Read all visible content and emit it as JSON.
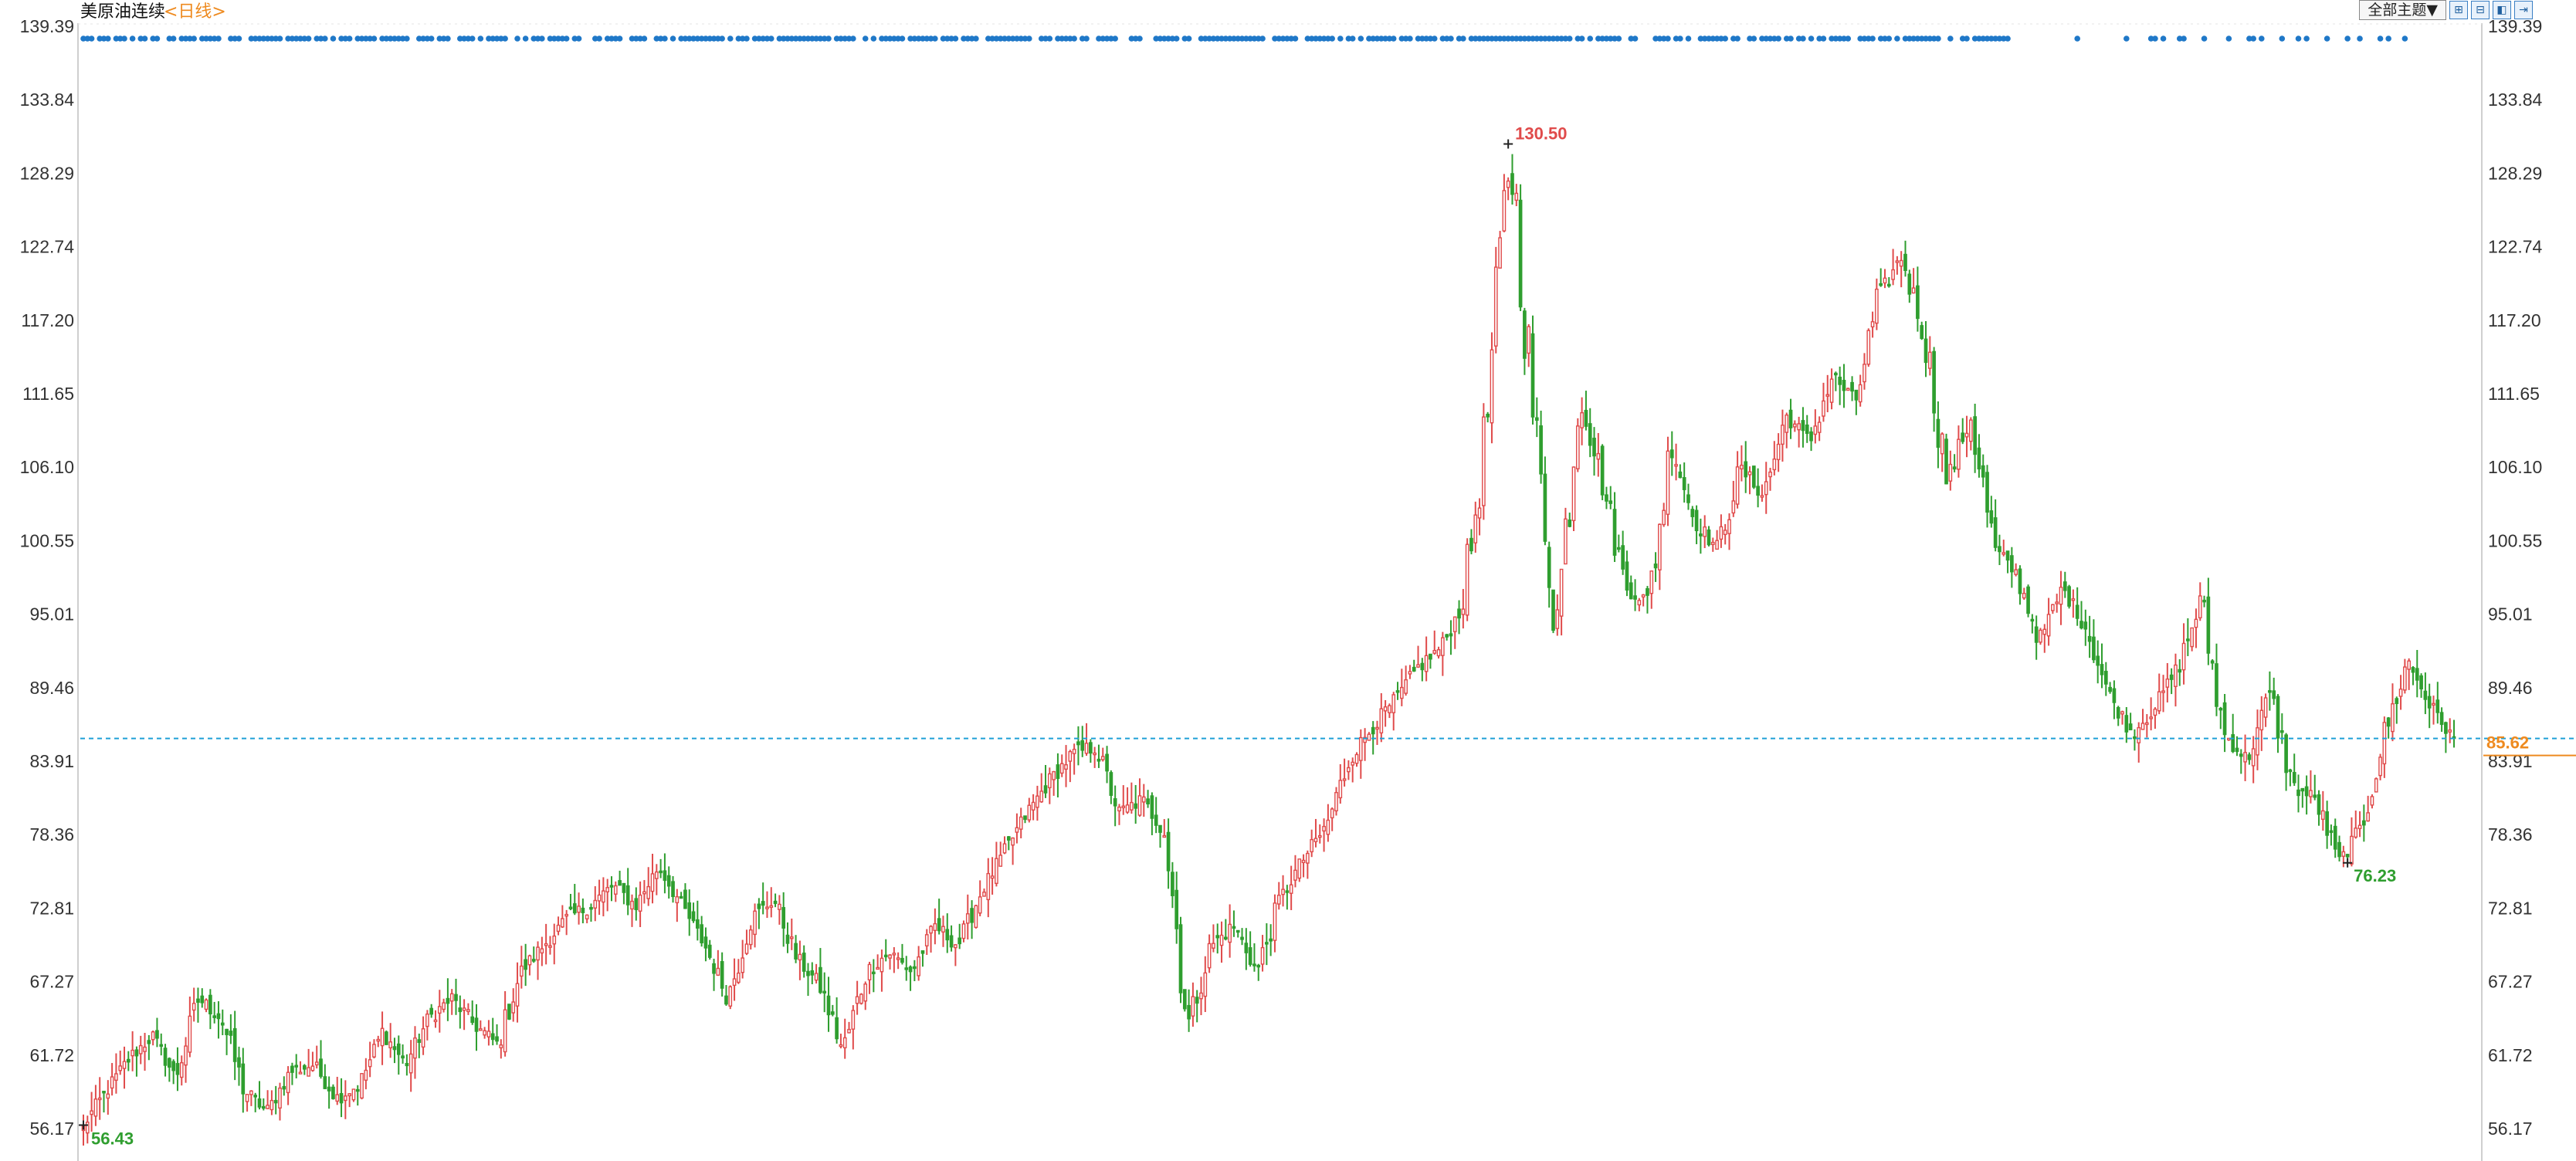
{
  "title": {
    "name": "美原油连续",
    "period": "<日线>"
  },
  "toolbar": {
    "theme_label": "全部主题▼",
    "tools": [
      "⊞",
      "⊟",
      "◧",
      "⇥"
    ]
  },
  "colors": {
    "up": "#e04b4b",
    "down": "#2f9e2f",
    "dots": "#1f78c8",
    "ref_line": "#1ea0d6",
    "price_tag": "#ee8a1f"
  },
  "chart_data": {
    "type": "candlestick",
    "title": "美原油连续",
    "ylim": [
      56.17,
      139.39
    ],
    "y_ticks": [
      "139.39",
      "133.84",
      "128.29",
      "122.74",
      "117.20",
      "111.65",
      "106.10",
      "100.55",
      "95.01",
      "89.46",
      "83.91",
      "78.36",
      "72.81",
      "67.27",
      "61.72",
      "56.17"
    ],
    "grid": false,
    "last_price": "85.62",
    "last_price_value": 85.62,
    "max_label": {
      "text": "130.50",
      "value": 130.5
    },
    "min_label": {
      "text": "56.43",
      "value": 56.43
    },
    "local_low_label": {
      "text": "76.23",
      "value": 76.23
    },
    "trend_closes": [
      56.43,
      59.0,
      61.5,
      63.2,
      60.0,
      66.0,
      64.5,
      59.0,
      57.5,
      60.5,
      61.0,
      58.5,
      59.5,
      63.5,
      61.0,
      64.5,
      66.0,
      64.0,
      62.5,
      68.0,
      70.0,
      72.0,
      73.0,
      74.5,
      73.0,
      76.0,
      73.0,
      70.0,
      66.0,
      72.0,
      73.5,
      69.0,
      67.0,
      62.0,
      68.0,
      69.5,
      68.0,
      71.5,
      70.0,
      74.0,
      77.0,
      80.0,
      82.5,
      84.5,
      85.0,
      80.0,
      81.0,
      78.5,
      64.0,
      70.0,
      71.5,
      68.0,
      73.5,
      76.5,
      79.0,
      84.0,
      86.5,
      88.5,
      91.0,
      92.5,
      96.0,
      110.0,
      130.5,
      110.0,
      94.0,
      112.0,
      105.0,
      97.0,
      96.0,
      108.0,
      102.0,
      100.0,
      106.0,
      104.0,
      110.0,
      108.0,
      113.0,
      111.0,
      119.0,
      122.0,
      116.0,
      105.0,
      110.0,
      100.0,
      98.0,
      93.0,
      97.0,
      94.0,
      89.0,
      86.0,
      88.0,
      91.0,
      96.0,
      86.0,
      84.0,
      89.0,
      82.0,
      81.0,
      76.23,
      79.0,
      86.0,
      91.5,
      88.0,
      85.62
    ]
  }
}
